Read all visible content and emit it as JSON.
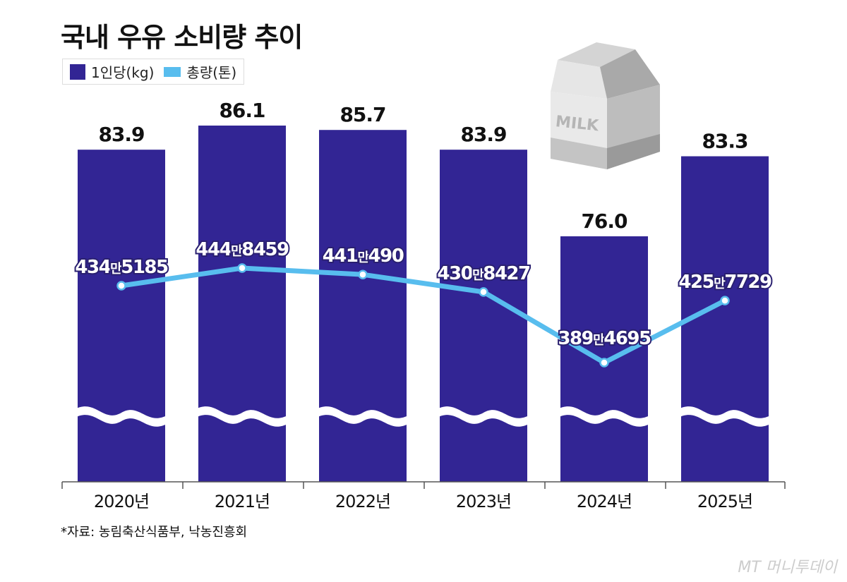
{
  "title": "국내 우유 소비량 추이",
  "source": "*자료: 농림축산식품부, 낙농진흥회",
  "logo": "MT 머니투데이",
  "carton_text": "MILK",
  "colors": {
    "bar": "#322594",
    "line": "#58bdee"
  },
  "chart_data": {
    "type": "bar+line",
    "title": "국내 우유 소비량 추이",
    "categories": [
      "2020년",
      "2021년",
      "2022년",
      "2023년",
      "2024년",
      "2025년"
    ],
    "legend": {
      "placement": "top-left",
      "entries": [
        "1인당(kg)",
        "총량(톤)"
      ]
    },
    "series": [
      {
        "name": "1인당(kg)",
        "type": "bar",
        "values": [
          83.9,
          86.1,
          85.7,
          83.9,
          76.0,
          83.3
        ],
        "labels": [
          "83.9",
          "86.1",
          "85.7",
          "83.9",
          "76.0",
          "83.3"
        ]
      },
      {
        "name": "총량(톤)",
        "type": "line",
        "values": [
          4345185,
          4448459,
          4410490,
          4308427,
          3894695,
          4257729
        ],
        "labels": [
          "434만5185",
          "444만8459",
          "441만490",
          "430만8427",
          "389만4695",
          "425만7729"
        ]
      }
    ],
    "axis_break": true,
    "grid": false
  }
}
